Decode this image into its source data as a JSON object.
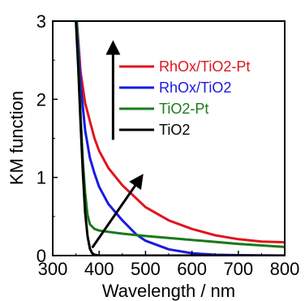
{
  "chart_data": {
    "type": "line",
    "xlabel": "Wavelength / nm",
    "ylabel": "KM function",
    "xlim": [
      300,
      800
    ],
    "ylim": [
      0,
      3
    ],
    "x_ticks": [
      "300",
      "400",
      "500",
      "600",
      "700",
      "800"
    ],
    "y_ticks": [
      "0",
      "1",
      "2",
      "3"
    ],
    "grid": false,
    "legend_position": "top-right",
    "series": [
      {
        "name": "RhOx/TiO2-Pt",
        "color": "#e0141e",
        "x": [
          352,
          360,
          370,
          380,
          390,
          400,
          420,
          450,
          500,
          550,
          600,
          650,
          700,
          750,
          800
        ],
        "y": [
          3.0,
          2.35,
          1.95,
          1.72,
          1.5,
          1.34,
          1.12,
          0.9,
          0.62,
          0.45,
          0.34,
          0.26,
          0.21,
          0.18,
          0.17
        ]
      },
      {
        "name": "RhOx/TiO2",
        "color": "#1a1ae0",
        "x": [
          352,
          360,
          370,
          380,
          390,
          400,
          420,
          450,
          480,
          500,
          550,
          600,
          650,
          700,
          800
        ],
        "y": [
          3.0,
          2.2,
          1.6,
          1.25,
          1.05,
          0.88,
          0.66,
          0.45,
          0.27,
          0.19,
          0.08,
          0.03,
          0.01,
          0.005,
          0.0
        ]
      },
      {
        "name": "TiO2-Pt",
        "color": "#1a7a1a",
        "x": [
          352,
          360,
          365,
          370,
          375,
          380,
          390,
          400,
          450,
          500,
          600,
          700,
          800
        ],
        "y": [
          3.0,
          1.8,
          1.2,
          0.8,
          0.52,
          0.4,
          0.34,
          0.32,
          0.28,
          0.25,
          0.2,
          0.15,
          0.11
        ]
      },
      {
        "name": "TiO2",
        "color": "#000000",
        "x": [
          350,
          355,
          360,
          365,
          370,
          375,
          380,
          385,
          390,
          400,
          450,
          500,
          800
        ],
        "y": [
          3.0,
          2.4,
          1.7,
          1.05,
          0.55,
          0.25,
          0.09,
          0.03,
          0.01,
          0.0,
          0.0,
          0.0,
          0.0
        ]
      }
    ],
    "annotations": [
      {
        "type": "arrow",
        "x0": 430,
        "y0": 1.48,
        "x1": 430,
        "y1": 2.7
      },
      {
        "type": "arrow",
        "x0": 385,
        "y0": 0.1,
        "x1": 490,
        "y1": 1.0
      }
    ]
  }
}
